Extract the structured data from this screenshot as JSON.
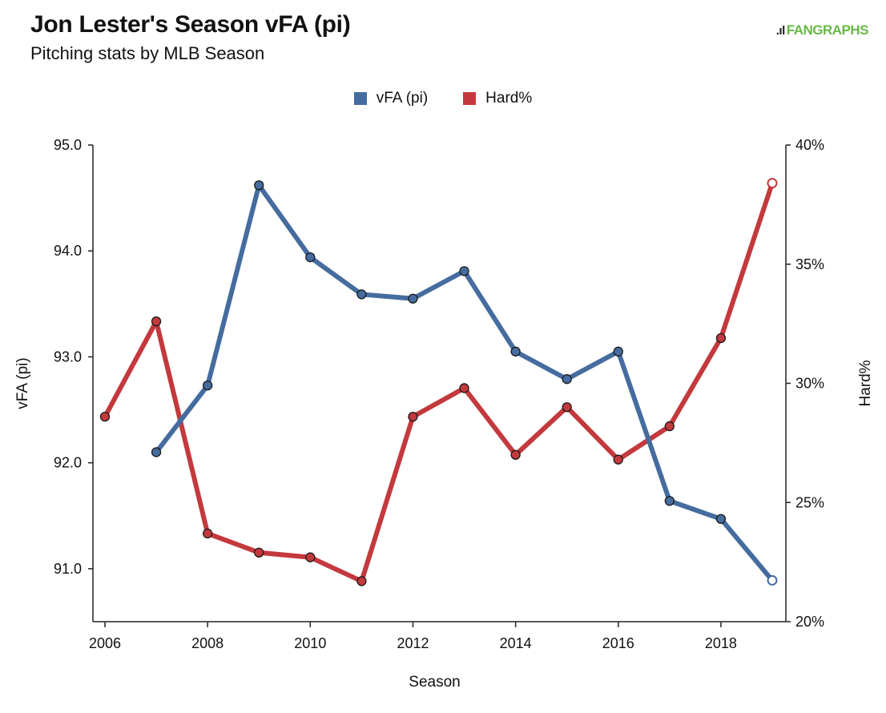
{
  "header": {
    "title": "Jon Lester's Season vFA (pi)",
    "subtitle": "Pitching stats by MLB Season",
    "brand": "FANGRAPHS",
    "brand_icon": "fangraphs-bars-icon"
  },
  "colors": {
    "vfa": "#456c9f",
    "hard": "#c3393d",
    "axis": "#222222"
  },
  "chart_data": {
    "type": "line",
    "title": "Jon Lester's Season vFA (pi)",
    "subtitle": "Pitching stats by MLB Season",
    "xlabel": "Season",
    "ylabel": "vFA (pi)",
    "y2label": "Hard%",
    "xlim": [
      2006,
      2019
    ],
    "ylim": [
      90.5,
      95.0
    ],
    "y2lim": [
      20,
      40
    ],
    "x_ticks": [
      "2006",
      "2008",
      "2010",
      "2012",
      "2014",
      "2016",
      "2018"
    ],
    "y_ticks": [
      "95.0",
      "94.0",
      "93.0",
      "92.0",
      "91.0"
    ],
    "y2_ticks": [
      "40%",
      "35%",
      "30%",
      "25%",
      "20%"
    ],
    "legend_position": "top-center",
    "grid": false,
    "series": [
      {
        "name": "vFA (pi)",
        "axis": "left",
        "x": [
          2007,
          2008,
          2009,
          2010,
          2011,
          2012,
          2013,
          2014,
          2015,
          2016,
          2017,
          2018,
          2019
        ],
        "values": [
          92.1,
          92.73,
          94.62,
          93.94,
          93.59,
          93.55,
          93.81,
          93.05,
          92.79,
          93.05,
          91.64,
          91.47,
          90.89
        ]
      },
      {
        "name": "Hard%",
        "axis": "right",
        "x": [
          2006,
          2007,
          2008,
          2009,
          2010,
          2011,
          2012,
          2013,
          2014,
          2015,
          2016,
          2017,
          2018,
          2019
        ],
        "values": [
          28.6,
          32.6,
          23.7,
          22.9,
          22.7,
          21.7,
          28.6,
          29.8,
          27.0,
          29.0,
          26.8,
          28.2,
          31.9,
          38.4
        ]
      }
    ]
  }
}
